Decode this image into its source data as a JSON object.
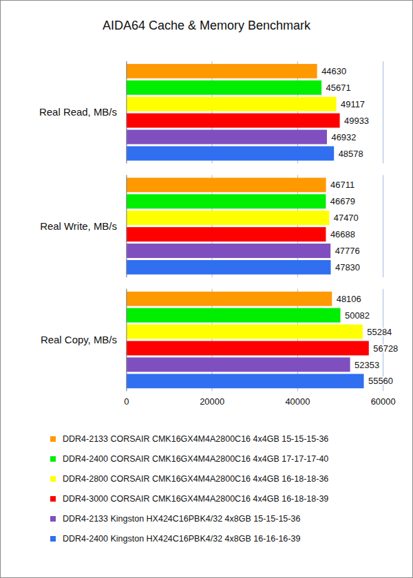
{
  "chart_data": {
    "type": "bar",
    "title": "AIDA64 Cache & Memory Benchmark",
    "orientation": "horizontal",
    "categories": [
      "Real Read, MB/s",
      "Real Write, MB/s",
      "Real Copy, MB/s"
    ],
    "series": [
      {
        "name": "DDR4-2133 CORSAIR CMK16GX4M4A2800C16 4x4GB 15-15-15-36",
        "color": "#ff9900",
        "values": [
          44630,
          46711,
          48106
        ]
      },
      {
        "name": "DDR4-2400 CORSAIR CMK16GX4M4A2800C16 4x4GB 17-17-17-40",
        "color": "#00ee00",
        "values": [
          45671,
          46679,
          50082
        ]
      },
      {
        "name": "DDR4-2800 CORSAIR CMK16GX4M4A2800C16 4x4GB 16-18-18-36",
        "color": "#ffff00",
        "values": [
          49117,
          47470,
          55284
        ]
      },
      {
        "name": "DDR4-3000 CORSAIR CMK16GX4M4A2800C16 4x4GB 16-18-18-39",
        "color": "#ff0000",
        "values": [
          49933,
          46688,
          56728
        ]
      },
      {
        "name": "DDR4-2133 Kingston HX424C16PBK4/32 4x8GB 15-15-15-36",
        "color": "#7f4fbf",
        "values": [
          46932,
          47776,
          52353
        ]
      },
      {
        "name": "DDR4-2400 Kingston HX424C16PBK4/32 4x8GB 16-16-16-39",
        "color": "#2f6ff0",
        "values": [
          48578,
          47830,
          55560
        ]
      }
    ],
    "xlim": [
      0,
      60000
    ],
    "xticks": [
      0,
      20000,
      40000,
      60000
    ],
    "grid": true,
    "data_labels": true,
    "legend": "bottom"
  }
}
